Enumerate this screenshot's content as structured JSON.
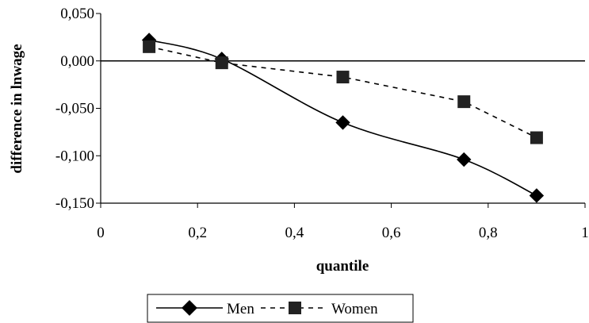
{
  "chart_data": {
    "type": "line",
    "title": "",
    "xlabel": "quantile",
    "ylabel": "difference in lnwage",
    "xlim": [
      0,
      1
    ],
    "ylim": [
      -0.15,
      0.05
    ],
    "xticks": [
      0,
      0.2,
      0.4,
      0.6,
      0.8,
      1
    ],
    "xtick_labels": [
      "0",
      "0,2",
      "0,4",
      "0,6",
      "0,8",
      "1"
    ],
    "yticks": [
      0.05,
      0.0,
      -0.05,
      -0.1,
      -0.15
    ],
    "ytick_labels": [
      "0,050",
      "0,000",
      "-0,050",
      "-0,100",
      "-0,150"
    ],
    "grid": false,
    "zero_line": true,
    "legend_position": "bottom",
    "series": [
      {
        "name": "Men",
        "style": "solid",
        "marker": "diamond",
        "color": "#000000",
        "x": [
          0.1,
          0.25,
          0.5,
          0.75,
          0.9
        ],
        "y": [
          0.022,
          0.002,
          -0.065,
          -0.104,
          -0.142
        ]
      },
      {
        "name": "Women",
        "style": "dashed",
        "marker": "square",
        "color": "#000000",
        "x": [
          0.1,
          0.25,
          0.5,
          0.75,
          0.9
        ],
        "y": [
          0.015,
          -0.002,
          -0.017,
          -0.043,
          -0.081
        ]
      }
    ]
  }
}
